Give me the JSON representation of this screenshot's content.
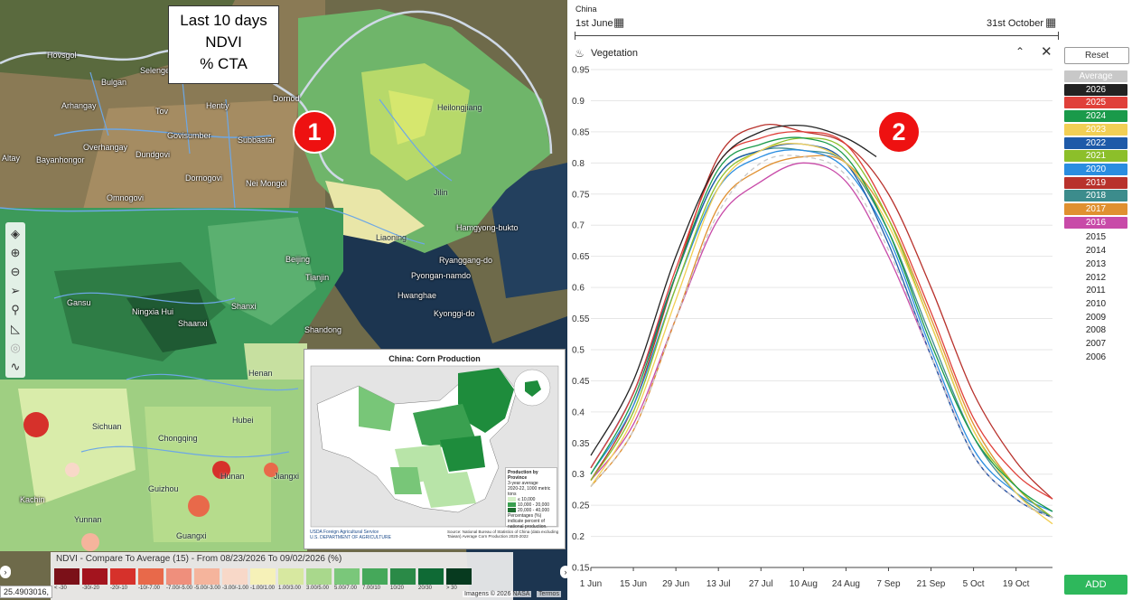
{
  "map": {
    "note_lines": [
      "Last 10 days",
      "NDVI",
      "% CTA"
    ],
    "badge": "1",
    "labels": [
      "Hovsgol",
      "Bulgan",
      "Selenge",
      "Arhangay",
      "Tov",
      "Hentiy",
      "Govisumber",
      "Overhangay",
      "Dundgovi",
      "Subbaatar",
      "Bayanhongor",
      "Dornogovi",
      "Omnogovi",
      "Nei Mongol",
      "Heilongjiang",
      "Jilin",
      "Liaoning",
      "Beijing",
      "Tianjin",
      "Shanxi",
      "Shandong",
      "Ningxia Hui",
      "Shaanxi",
      "Gansu",
      "Henan",
      "Hubei",
      "Sichuan",
      "Chongqing",
      "Guizhou",
      "Hunan",
      "Jiangxi",
      "Yunnan",
      "Guangxi",
      "Kachin",
      "Altay",
      "Dornod",
      "Hamgyong-bukto",
      "Pyongan-namdo",
      "Kyonggi-do",
      "Hwanghae",
      "Ryanggang-do"
    ],
    "inset": {
      "title": "China: Corn Production",
      "legend_title": "Production by Province",
      "legend_subtitle": "3-year average",
      "legend_unit": "2020-22, 1000 metric tons",
      "legend_items": [
        "≤ 10,000",
        "10,000 - 20,000",
        "20,000 - 40,000"
      ],
      "legend_note": "Percentages (%) indicate percent of national production.",
      "agency": "USDA  Foreign Agricultural Service",
      "agency_sub": "U.S. DEPARTMENT OF AGRICULTURE",
      "source": "Source: National Bureau of Statistics of China (data excluding Taiwan) Average Corn Production 2020-2022"
    },
    "legend_title": "NDVI - Compare To Average (15) - From 08/23/2026 To 09/02/2026 (%)",
    "legend_items": [
      {
        "label": "< -30",
        "color": "#7b1018"
      },
      {
        "label": "-30/-20",
        "color": "#a3141e"
      },
      {
        "label": "-20/-10",
        "color": "#d6312b"
      },
      {
        "label": "-10/-7.00",
        "color": "#e8694a"
      },
      {
        "label": "-7.00/-5.00",
        "color": "#ef8f7c"
      },
      {
        "label": "-5.00/-3.00",
        "color": "#f5b49c"
      },
      {
        "label": "-3.00/-1.00",
        "color": "#f8d8c8"
      },
      {
        "label": "-1.00/1.00",
        "color": "#f6f1b8"
      },
      {
        "label": "1.00/3.00",
        "color": "#d7e8a0"
      },
      {
        "label": "3.00/5.00",
        "color": "#a9d88c"
      },
      {
        "label": "5.00/7.00",
        "color": "#7ac77a"
      },
      {
        "label": "7.00/10",
        "color": "#45a85a"
      },
      {
        "label": "10/20",
        "color": "#2a8a47"
      },
      {
        "label": "20/30",
        "color": "#0f6a35"
      },
      {
        "label": "> 30",
        "color": "#073a1f"
      }
    ],
    "coords": "25.4903016, ",
    "attribution": "Imagens © 2026 NASA",
    "terms": "Termos"
  },
  "chart_panel": {
    "region": "China",
    "start_date": "1st June",
    "end_date": "31st October",
    "layer": "Vegetation",
    "badge": "2",
    "reset_label": "Reset",
    "add_label": "ADD"
  },
  "chart_data": {
    "type": "line",
    "title": "Vegetation",
    "ylim": [
      0.15,
      0.95
    ],
    "yticks": [
      0.95,
      0.9,
      0.85,
      0.8,
      0.75,
      0.7,
      0.65,
      0.6,
      0.55,
      0.5,
      0.45,
      0.4,
      0.35,
      0.3,
      0.25,
      0.2,
      0.15
    ],
    "xlim": [
      "2026-06-01",
      "2026-10-31"
    ],
    "xticks": [
      "1 Jun",
      "15 Jun",
      "29 Jun",
      "13 Jul",
      "27 Jul",
      "10 Aug",
      "24 Aug",
      "7 Sep",
      "21 Sep",
      "5 Oct",
      "19 Oct"
    ],
    "grid": true,
    "legend_position": "right",
    "series": [
      {
        "name": "Average",
        "color": "#c8c8c8",
        "dashed": true,
        "x": [
          "2026-06-01",
          "2026-06-15",
          "2026-06-29",
          "2026-07-13",
          "2026-07-27",
          "2026-08-10",
          "2026-08-24",
          "2026-09-07",
          "2026-09-21",
          "2026-10-05",
          "2026-10-19",
          "2026-10-31"
        ],
        "y": [
          0.28,
          0.37,
          0.55,
          0.72,
          0.8,
          0.81,
          0.78,
          0.66,
          0.49,
          0.33,
          0.26,
          0.23
        ]
      },
      {
        "name": "2026",
        "color": "#222222",
        "x": [
          "2026-06-01",
          "2026-06-15",
          "2026-06-29",
          "2026-07-13",
          "2026-07-27",
          "2026-08-10",
          "2026-08-24",
          "2026-09-03"
        ],
        "y": [
          0.33,
          0.45,
          0.65,
          0.8,
          0.85,
          0.86,
          0.84,
          0.81
        ]
      },
      {
        "name": "2025",
        "color": "#e0403a",
        "x": [
          "2026-06-01",
          "2026-06-15",
          "2026-06-29",
          "2026-07-13",
          "2026-07-27",
          "2026-08-10",
          "2026-08-24",
          "2026-09-07",
          "2026-09-21",
          "2026-10-05",
          "2026-10-19",
          "2026-10-31"
        ],
        "y": [
          0.31,
          0.43,
          0.63,
          0.8,
          0.84,
          0.85,
          0.83,
          0.72,
          0.56,
          0.39,
          0.3,
          0.26
        ]
      },
      {
        "name": "2024",
        "color": "#1a9a4a",
        "x": [
          "2026-06-01",
          "2026-06-15",
          "2026-06-29",
          "2026-07-13",
          "2026-07-27",
          "2026-08-10",
          "2026-08-24",
          "2026-09-07",
          "2026-09-21",
          "2026-10-05",
          "2026-10-19",
          "2026-10-31"
        ],
        "y": [
          0.3,
          0.42,
          0.62,
          0.79,
          0.83,
          0.84,
          0.81,
          0.69,
          0.51,
          0.36,
          0.28,
          0.24
        ]
      },
      {
        "name": "2023",
        "color": "#f2cf55",
        "x": [
          "2026-06-01",
          "2026-06-15",
          "2026-06-29",
          "2026-07-13",
          "2026-07-27",
          "2026-08-10",
          "2026-08-24",
          "2026-09-07",
          "2026-09-21",
          "2026-10-05",
          "2026-10-19",
          "2026-10-31"
        ],
        "y": [
          0.28,
          0.39,
          0.58,
          0.76,
          0.82,
          0.83,
          0.8,
          0.7,
          0.54,
          0.37,
          0.27,
          0.22
        ]
      },
      {
        "name": "2022",
        "color": "#1e5aa8",
        "x": [
          "2026-06-01",
          "2026-06-15",
          "2026-06-29",
          "2026-07-13",
          "2026-07-27",
          "2026-08-10",
          "2026-08-24",
          "2026-09-07",
          "2026-09-21",
          "2026-10-05",
          "2026-10-19",
          "2026-10-31"
        ],
        "y": [
          0.31,
          0.43,
          0.62,
          0.78,
          0.82,
          0.83,
          0.8,
          0.67,
          0.49,
          0.33,
          0.26,
          0.23
        ]
      },
      {
        "name": "2021",
        "color": "#8cbf2a",
        "x": [
          "2026-06-01",
          "2026-06-15",
          "2026-06-29",
          "2026-07-13",
          "2026-07-27",
          "2026-08-10",
          "2026-08-24",
          "2026-09-07",
          "2026-09-21",
          "2026-10-05",
          "2026-10-19",
          "2026-10-31"
        ],
        "y": [
          0.29,
          0.4,
          0.6,
          0.77,
          0.82,
          0.84,
          0.82,
          0.71,
          0.54,
          0.37,
          0.28,
          0.23
        ]
      },
      {
        "name": "2020",
        "color": "#2a8de0",
        "x": [
          "2026-06-01",
          "2026-06-15",
          "2026-06-29",
          "2026-07-13",
          "2026-07-27",
          "2026-08-10",
          "2026-08-24",
          "2026-09-07",
          "2026-09-21",
          "2026-10-05",
          "2026-10-19",
          "2026-10-31"
        ],
        "y": [
          0.3,
          0.41,
          0.6,
          0.76,
          0.81,
          0.82,
          0.79,
          0.68,
          0.5,
          0.34,
          0.27,
          0.24
        ]
      },
      {
        "name": "2019",
        "color": "#b8322c",
        "x": [
          "2026-06-01",
          "2026-06-15",
          "2026-06-29",
          "2026-07-13",
          "2026-07-27",
          "2026-08-10",
          "2026-08-24",
          "2026-09-07",
          "2026-09-21",
          "2026-10-05",
          "2026-10-19",
          "2026-10-31"
        ],
        "y": [
          0.29,
          0.41,
          0.62,
          0.81,
          0.86,
          0.85,
          0.83,
          0.75,
          0.6,
          0.43,
          0.32,
          0.26
        ]
      },
      {
        "name": "2018",
        "color": "#3c8c8c",
        "x": [
          "2026-06-01",
          "2026-06-15",
          "2026-06-29",
          "2026-07-13",
          "2026-07-27",
          "2026-08-10",
          "2026-08-24",
          "2026-09-07",
          "2026-09-21",
          "2026-10-05",
          "2026-10-19",
          "2026-10-31"
        ],
        "y": [
          0.31,
          0.43,
          0.62,
          0.78,
          0.82,
          0.82,
          0.8,
          0.69,
          0.52,
          0.36,
          0.27,
          0.23
        ]
      },
      {
        "name": "2017",
        "color": "#e09030",
        "x": [
          "2026-06-01",
          "2026-06-15",
          "2026-06-29",
          "2026-07-13",
          "2026-07-27",
          "2026-08-10",
          "2026-08-24",
          "2026-09-07",
          "2026-09-21",
          "2026-10-05",
          "2026-10-19",
          "2026-10-31"
        ],
        "y": [
          0.28,
          0.37,
          0.55,
          0.73,
          0.79,
          0.81,
          0.8,
          0.71,
          0.55,
          0.38,
          0.28,
          0.23
        ]
      },
      {
        "name": "2016",
        "color": "#c84aa8",
        "x": [
          "2026-06-01",
          "2026-06-15",
          "2026-06-29",
          "2026-07-13",
          "2026-07-27",
          "2026-08-10",
          "2026-08-24",
          "2026-09-07",
          "2026-09-21",
          "2026-10-05",
          "2026-10-19",
          "2026-10-31"
        ],
        "y": [
          0.29,
          0.38,
          0.55,
          0.71,
          0.77,
          0.8,
          0.77,
          0.65,
          0.49,
          0.33,
          0.26,
          0.23
        ]
      }
    ],
    "inactive_years": [
      "2015",
      "2014",
      "2013",
      "2012",
      "2011",
      "2010",
      "2009",
      "2008",
      "2007",
      "2006"
    ]
  }
}
